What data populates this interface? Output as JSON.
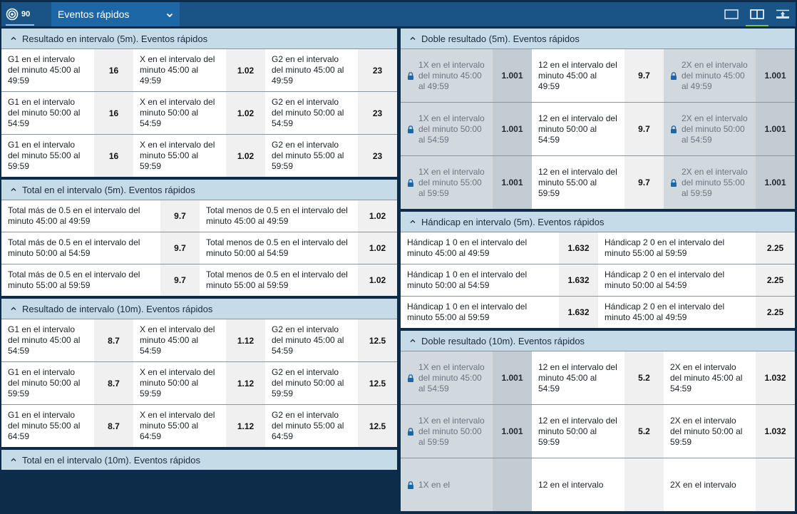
{
  "topbar": {
    "live_count": "90",
    "live_icon": "target-icon",
    "dropdown_label": "Eventos rápidos",
    "view_buttons": [
      {
        "name": "single-column-view",
        "active": false
      },
      {
        "name": "two-column-view",
        "active": true
      },
      {
        "name": "collapse-view",
        "active": false
      }
    ],
    "accent_color": "#7ec242"
  },
  "left": [
    {
      "title": "Resultado en intervalo (5m). Eventos rápidos",
      "rows": [
        [
          {
            "label": "G1 en el intervalo del minuto 45:00 al 49:59",
            "odd": "16"
          },
          {
            "label": "X en el intervalo del minuto 45:00 al 49:59",
            "odd": "1.02"
          },
          {
            "label": "G2 en el intervalo del minuto 45:00 al 49:59",
            "odd": "23"
          }
        ],
        [
          {
            "label": "G1 en el intervalo del minuto 50:00 al 54:59",
            "odd": "16"
          },
          {
            "label": "X en el intervalo del minuto 50:00 al 54:59",
            "odd": "1.02"
          },
          {
            "label": "G2 en el intervalo del minuto 50:00 al 54:59",
            "odd": "23"
          }
        ],
        [
          {
            "label": "G1 en el intervalo del minuto 55:00 al 59:59",
            "odd": "16"
          },
          {
            "label": "X en el intervalo del minuto 55:00 al 59:59",
            "odd": "1.02"
          },
          {
            "label": "G2 en el intervalo del minuto 55:00 al 59:59",
            "odd": "23"
          }
        ]
      ]
    },
    {
      "title": "Total en el intervalo (5m). Eventos rápidos",
      "rows": [
        [
          {
            "label": "Total más de 0.5 en el intervalo del minuto 45:00 al 49:59",
            "odd": "9.7"
          },
          {
            "label": "Total menos de 0.5 en el intervalo del minuto 45:00 al 49:59",
            "odd": "1.02"
          }
        ],
        [
          {
            "label": "Total más de 0.5 en el intervalo del minuto 50:00 al 54:59",
            "odd": "9.7"
          },
          {
            "label": "Total menos de 0.5 en el intervalo del minuto 50:00 al 54:59",
            "odd": "1.02"
          }
        ],
        [
          {
            "label": "Total más de 0.5 en el intervalo del minuto 55:00 al 59:59",
            "odd": "9.7"
          },
          {
            "label": "Total menos de 0.5 en el intervalo del minuto 55:00 al 59:59",
            "odd": "1.02"
          }
        ]
      ]
    },
    {
      "title": "Resultado de intervalo (10m). Eventos rápidos",
      "rows": [
        [
          {
            "label": "G1 en el intervalo del minuto 45:00 al 54:59",
            "odd": "8.7"
          },
          {
            "label": "X en el intervalo del minuto 45:00 al 54:59",
            "odd": "1.12"
          },
          {
            "label": "G2 en el intervalo del minuto 45:00 al 54:59",
            "odd": "12.5"
          }
        ],
        [
          {
            "label": "G1 en el intervalo del minuto 50:00 al 59:59",
            "odd": "8.7"
          },
          {
            "label": "X en el intervalo del minuto 50:00 al 59:59",
            "odd": "1.12"
          },
          {
            "label": "G2 en el intervalo del minuto 50:00 al 59:59",
            "odd": "12.5"
          }
        ],
        [
          {
            "label": "G1 en el intervalo del minuto 55:00 al 64:59",
            "odd": "8.7"
          },
          {
            "label": "X en el intervalo del minuto 55:00 al 64:59",
            "odd": "1.12"
          },
          {
            "label": "G2 en el intervalo del minuto 55:00 al 64:59",
            "odd": "12.5"
          }
        ]
      ]
    },
    {
      "title": "Total en el intervalo (10m). Eventos rápidos",
      "rows": []
    }
  ],
  "right": [
    {
      "title": "Doble resultado (5m). Eventos rápidos",
      "rows": [
        [
          {
            "label": "1X en el intervalo del minuto 45:00 al 49:59",
            "odd": "1.001",
            "locked": true
          },
          {
            "label": "12 en el intervalo del minuto 45:00 al 49:59",
            "odd": "9.7"
          },
          {
            "label": "2X en el intervalo del minuto 45:00 al 49:59",
            "odd": "1.001",
            "locked": true
          }
        ],
        [
          {
            "label": "1X en el intervalo del minuto 50:00 al 54:59",
            "odd": "1.001",
            "locked": true
          },
          {
            "label": "12 en el intervalo del minuto 50:00 al 54:59",
            "odd": "9.7"
          },
          {
            "label": "2X en el intervalo del minuto 50:00 al 54:59",
            "odd": "1.001",
            "locked": true
          }
        ],
        [
          {
            "label": "1X en el intervalo del minuto 55:00 al 59:59",
            "odd": "1.001",
            "locked": true
          },
          {
            "label": "12 en el intervalo del minuto 55:00 al 59:59",
            "odd": "9.7"
          },
          {
            "label": "2X en el intervalo del minuto 55:00 al 59:59",
            "odd": "1.001",
            "locked": true
          }
        ]
      ]
    },
    {
      "title": "Hándicap en intervalo (5m). Eventos rápidos",
      "rows": [
        [
          {
            "label": "Hándicap 1 0 en el intervalo del minuto 45:00 al 49:59",
            "odd": "1.632"
          },
          {
            "label": "Hándicap 2 0 en el intervalo del minuto 55:00 al 59:59",
            "odd": "2.25"
          }
        ],
        [
          {
            "label": "Hándicap 1 0 en el intervalo del minuto 50:00 al 54:59",
            "odd": "1.632"
          },
          {
            "label": "Hándicap 2 0 en el intervalo del minuto 50:00 al 54:59",
            "odd": "2.25"
          }
        ],
        [
          {
            "label": "Hándicap 1 0 en el intervalo del minuto 55:00 al 59:59",
            "odd": "1.632"
          },
          {
            "label": "Hándicap 2 0 en el intervalo del minuto 45:00 al 49:59",
            "odd": "2.25"
          }
        ]
      ]
    },
    {
      "title": "Doble resultado (10m). Eventos rápidos",
      "rows": [
        [
          {
            "label": "1X en el intervalo del minuto 45:00 al 54:59",
            "odd": "1.001",
            "locked": true
          },
          {
            "label": "12 en el intervalo del minuto 45:00 al 54:59",
            "odd": "5.2"
          },
          {
            "label": "2X en el intervalo del minuto 45:00 al 54:59",
            "odd": "1.032"
          }
        ],
        [
          {
            "label": "1X en el intervalo del minuto 50:00 al 59:59",
            "odd": "1.001",
            "locked": true
          },
          {
            "label": "12 en el intervalo del minuto 50:00 al 59:59",
            "odd": "5.2"
          },
          {
            "label": "2X en el intervalo del minuto 50:00 al 59:59",
            "odd": "1.032"
          }
        ],
        [
          {
            "label": "1X en el",
            "odd": "",
            "locked": true
          },
          {
            "label": "12 en el intervalo",
            "odd": ""
          },
          {
            "label": "2X en el intervalo",
            "odd": ""
          }
        ]
      ]
    }
  ]
}
